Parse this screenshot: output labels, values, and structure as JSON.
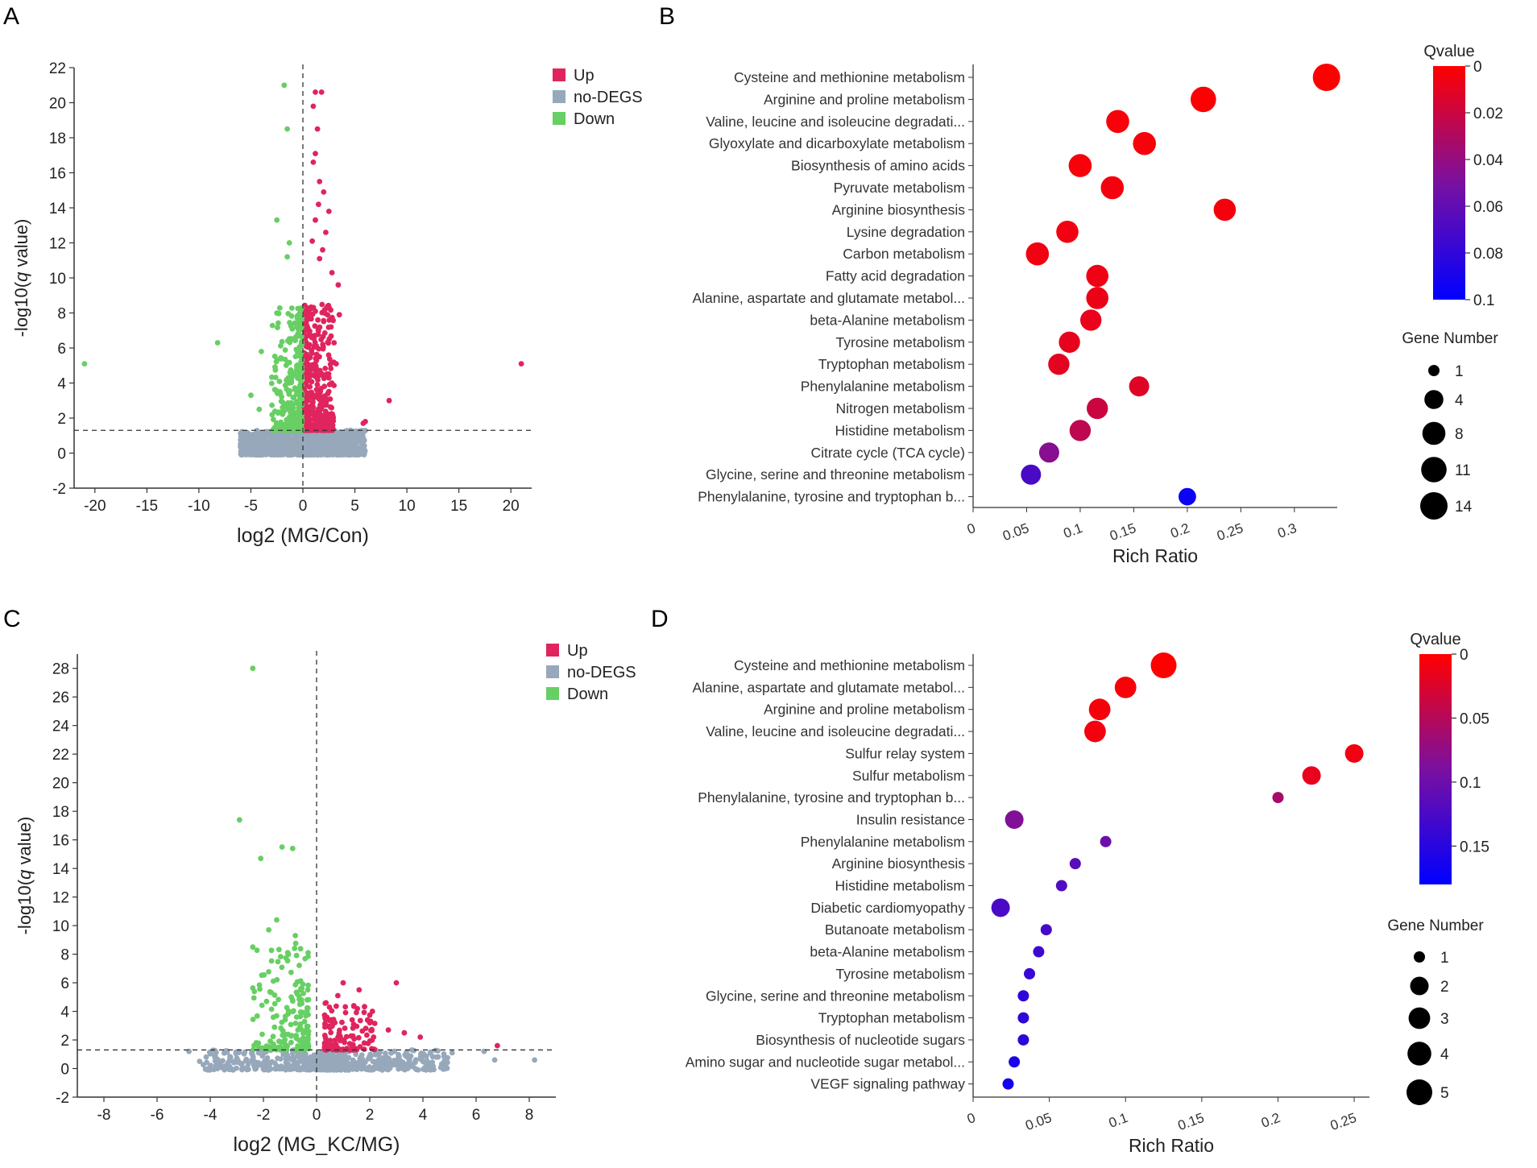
{
  "figure": {
    "panel_letters": [
      "A",
      "B",
      "C",
      "D"
    ]
  },
  "colors": {
    "up": "#e0245e",
    "nodegs": "#97a8bb",
    "down": "#67cf63",
    "qvalue_low": "#ff0000",
    "qvalue_mid": "#7a10a0",
    "qvalue_high": "#0000ff",
    "axis": "#333333",
    "threshold": "#333333"
  },
  "chart_data": [
    {
      "panel": "A",
      "type": "scatter",
      "subtype": "volcano",
      "title": "",
      "xlabel": "log2 (MG/Con)",
      "ylabel_prefix": "-log10(",
      "ylabel_italic": "q",
      "ylabel_suffix": " value)",
      "xlim": [
        -22,
        22
      ],
      "ylim": [
        -2,
        22
      ],
      "xticks": [
        -20,
        -15,
        -10,
        -5,
        0,
        5,
        10,
        15,
        20
      ],
      "yticks": [
        -2,
        0,
        2,
        4,
        6,
        8,
        10,
        12,
        14,
        16,
        18,
        20,
        22
      ],
      "threshold_y": 1.3,
      "threshold_x": 0,
      "legend": {
        "position": "top-right",
        "entries": [
          "Up",
          "no-DEGS",
          "Down"
        ]
      },
      "up_points": [
        [
          21,
          5.1
        ],
        [
          8.3,
          3
        ],
        [
          6,
          1.8
        ],
        [
          5.8,
          1.7
        ],
        [
          1.2,
          20.6
        ],
        [
          1.8,
          20.6
        ],
        [
          1,
          19.8
        ],
        [
          1.4,
          18.5
        ],
        [
          1.2,
          17.1
        ],
        [
          1,
          16.6
        ],
        [
          2,
          14.9
        ],
        [
          1.5,
          14.2
        ],
        [
          2.5,
          13.8
        ],
        [
          1.2,
          13.3
        ],
        [
          1.9,
          11.6
        ],
        [
          2.8,
          10.3
        ],
        [
          3.4,
          9.6
        ],
        [
          2.4,
          8.4
        ],
        [
          3.5,
          7.9
        ],
        [
          2.7,
          7.2
        ],
        [
          3,
          6.3
        ],
        [
          3.2,
          5.1
        ],
        [
          1.6,
          11.1
        ],
        [
          0.9,
          12.1
        ],
        [
          2.2,
          12.6
        ],
        [
          1.6,
          15.5
        ]
      ],
      "up_cluster": {
        "x_from": 0.1,
        "x_to": 3,
        "y_from": 1.3,
        "y_to": 8.5,
        "count": 420
      },
      "down_points": [
        [
          -21,
          5.1
        ],
        [
          -8.2,
          6.3
        ],
        [
          -4,
          5.8
        ],
        [
          -1.8,
          21
        ],
        [
          -1.5,
          18.5
        ],
        [
          -2.5,
          13.3
        ],
        [
          -1.3,
          12
        ],
        [
          -1.5,
          11.2
        ],
        [
          -5,
          3.3
        ],
        [
          -4.2,
          2.5
        ]
      ],
      "down_cluster": {
        "x_from": -3,
        "x_to": -0.1,
        "y_from": 1.3,
        "y_to": 8.3,
        "count": 300
      },
      "nodegs_cluster": {
        "x_from": -6,
        "x_to": 6,
        "y_from": -0.1,
        "y_to": 1.3,
        "count": 1400
      }
    },
    {
      "panel": "B",
      "type": "scatter",
      "subtype": "enrichment-bubble",
      "xlabel": "Rich Ratio",
      "xlim": [
        0,
        0.34
      ],
      "xticks": [
        0,
        0.05,
        0.1,
        0.15,
        0.2,
        0.25,
        0.3
      ],
      "xtick_labels": [
        "0",
        "0.05",
        "0.1",
        "0.15",
        "0.2",
        "0.25",
        "0.3"
      ],
      "colorbar": {
        "title": "Qvalue",
        "min": 0,
        "max": 0.1,
        "ticks": [
          0,
          0.02,
          0.04,
          0.06,
          0.08,
          0.1
        ],
        "tick_labels": [
          "0",
          "0.02",
          "0.04",
          "0.06",
          "0.08",
          "0.1"
        ]
      },
      "size_legend": {
        "title": "Gene Number",
        "values": [
          1,
          4,
          8,
          11,
          14
        ],
        "labels": [
          "1",
          "4",
          "8",
          "11",
          "14"
        ]
      },
      "pathways": [
        {
          "name": "Cysteine and methionine metabolism",
          "rich_ratio": 0.33,
          "qvalue": 0.0,
          "gene_number": 14
        },
        {
          "name": "Arginine and proline metabolism",
          "rich_ratio": 0.215,
          "qvalue": 0.001,
          "gene_number": 11
        },
        {
          "name": "Valine, leucine and isoleucine degradati...",
          "rich_ratio": 0.135,
          "qvalue": 0.003,
          "gene_number": 8
        },
        {
          "name": "Glyoxylate and dicarboxylate metabolism",
          "rich_ratio": 0.16,
          "qvalue": 0.003,
          "gene_number": 8
        },
        {
          "name": "Biosynthesis of amino acids",
          "rich_ratio": 0.1,
          "qvalue": 0.003,
          "gene_number": 8
        },
        {
          "name": "Pyruvate metabolism",
          "rich_ratio": 0.13,
          "qvalue": 0.004,
          "gene_number": 8
        },
        {
          "name": "Arginine biosynthesis",
          "rich_ratio": 0.235,
          "qvalue": 0.004,
          "gene_number": 7
        },
        {
          "name": "Lysine degradation",
          "rich_ratio": 0.088,
          "qvalue": 0.005,
          "gene_number": 7
        },
        {
          "name": "Carbon metabolism",
          "rich_ratio": 0.06,
          "qvalue": 0.005,
          "gene_number": 8
        },
        {
          "name": "Fatty acid degradation",
          "rich_ratio": 0.116,
          "qvalue": 0.006,
          "gene_number": 7
        },
        {
          "name": "Alanine, aspartate and glutamate metabol...",
          "rich_ratio": 0.116,
          "qvalue": 0.007,
          "gene_number": 7
        },
        {
          "name": "beta-Alanine metabolism",
          "rich_ratio": 0.11,
          "qvalue": 0.008,
          "gene_number": 6
        },
        {
          "name": "Tyrosine metabolism",
          "rich_ratio": 0.09,
          "qvalue": 0.009,
          "gene_number": 6
        },
        {
          "name": "Tryptophan metabolism",
          "rich_ratio": 0.08,
          "qvalue": 0.01,
          "gene_number": 6
        },
        {
          "name": "Phenylalanine metabolism",
          "rich_ratio": 0.155,
          "qvalue": 0.012,
          "gene_number": 5
        },
        {
          "name": "Nitrogen metabolism",
          "rich_ratio": 0.116,
          "qvalue": 0.02,
          "gene_number": 6
        },
        {
          "name": "Histidine metabolism",
          "rich_ratio": 0.1,
          "qvalue": 0.025,
          "gene_number": 6
        },
        {
          "name": "Citrate cycle (TCA cycle)",
          "rich_ratio": 0.071,
          "qvalue": 0.045,
          "gene_number": 5
        },
        {
          "name": "Glycine, serine and threonine metabolism",
          "rich_ratio": 0.054,
          "qvalue": 0.07,
          "gene_number": 5
        },
        {
          "name": "Phenylalanine, tyrosine and tryptophan b...",
          "rich_ratio": 0.2,
          "qvalue": 0.095,
          "gene_number": 3
        }
      ]
    },
    {
      "panel": "C",
      "type": "scatter",
      "subtype": "volcano",
      "title": "",
      "xlabel": "log2 (MG_KC/MG)",
      "ylabel_prefix": "-log10(",
      "ylabel_italic": "q",
      "ylabel_suffix": " value)",
      "xlim": [
        -9,
        9
      ],
      "ylim": [
        -2,
        29
      ],
      "xticks": [
        -8,
        -6,
        -4,
        -2,
        0,
        2,
        4,
        6,
        8
      ],
      "yticks": [
        -2,
        0,
        2,
        4,
        6,
        8,
        10,
        12,
        14,
        16,
        18,
        20,
        22,
        24,
        26,
        28
      ],
      "threshold_y": 1.3,
      "threshold_x": 0,
      "legend": {
        "position": "top-right",
        "entries": [
          "Up",
          "no-DEGS",
          "Down"
        ]
      },
      "up_points": [
        [
          1,
          6
        ],
        [
          1.6,
          5.5
        ],
        [
          3,
          6
        ],
        [
          2.1,
          4
        ],
        [
          2,
          3.2
        ],
        [
          2.7,
          2.7
        ],
        [
          3.3,
          2.5
        ],
        [
          3.9,
          2.2
        ],
        [
          6.8,
          1.6
        ],
        [
          1.4,
          4.4
        ],
        [
          0.8,
          5.1
        ]
      ],
      "up_cluster": {
        "x_from": 0.3,
        "x_to": 2.4,
        "y_from": 1.3,
        "y_to": 4.6,
        "count": 120
      },
      "down_points": [
        [
          -2.4,
          28
        ],
        [
          -2.9,
          17.4
        ],
        [
          -2.1,
          14.7
        ],
        [
          -1.3,
          15.5
        ],
        [
          -0.9,
          15.4
        ],
        [
          -1.5,
          10.4
        ],
        [
          -2.4,
          8.5
        ],
        [
          -1.8,
          9.7
        ],
        [
          -0.8,
          9.3
        ]
      ],
      "down_cluster": {
        "x_from": -2.4,
        "x_to": -0.3,
        "y_from": 1.3,
        "y_to": 8.9,
        "count": 180
      },
      "nodegs_cluster": {
        "x_from": -4.3,
        "x_to": 5,
        "y_from": -0.1,
        "y_to": 1.3,
        "count": 650
      },
      "nodegs_points": [
        [
          -4.8,
          1.2
        ],
        [
          -4.4,
          0.5
        ],
        [
          6.3,
          1.2
        ],
        [
          6.7,
          0.6
        ],
        [
          8.2,
          0.6
        ],
        [
          5.1,
          1.1
        ]
      ]
    },
    {
      "panel": "D",
      "type": "scatter",
      "subtype": "enrichment-bubble",
      "xlabel": "Rich Ratio",
      "xlim": [
        0,
        0.26
      ],
      "xticks": [
        0,
        0.05,
        0.1,
        0.15,
        0.2,
        0.25
      ],
      "xtick_labels": [
        "0",
        "0.05",
        "0.1",
        "0.15",
        "0.2",
        "0.25"
      ],
      "colorbar": {
        "title": "Qvalue",
        "min": 0,
        "max": 0.18,
        "ticks": [
          0,
          0.05,
          0.1,
          0.15
        ],
        "tick_labels": [
          "0",
          "0.05",
          "0.1",
          "0.15"
        ]
      },
      "size_legend": {
        "title": "Gene Number",
        "values": [
          1,
          2,
          3,
          4,
          5
        ],
        "labels": [
          "1",
          "2",
          "3",
          "4",
          "5"
        ]
      },
      "pathways": [
        {
          "name": "Cysteine and methionine metabolism",
          "rich_ratio": 0.125,
          "qvalue": 0.0,
          "gene_number": 5
        },
        {
          "name": "Alanine, aspartate and glutamate metabol...",
          "rich_ratio": 0.1,
          "qvalue": 0.005,
          "gene_number": 3
        },
        {
          "name": "Arginine and proline metabolism",
          "rich_ratio": 0.083,
          "qvalue": 0.007,
          "gene_number": 3
        },
        {
          "name": "Valine, leucine and isoleucine degradati...",
          "rich_ratio": 0.08,
          "qvalue": 0.008,
          "gene_number": 3
        },
        {
          "name": "Sulfur relay system",
          "rich_ratio": 0.25,
          "qvalue": 0.01,
          "gene_number": 2
        },
        {
          "name": "Sulfur metabolism",
          "rich_ratio": 0.222,
          "qvalue": 0.015,
          "gene_number": 2
        },
        {
          "name": "Phenylalanine, tyrosine and tryptophan b...",
          "rich_ratio": 0.2,
          "qvalue": 0.06,
          "gene_number": 1
        },
        {
          "name": "Insulin resistance",
          "rich_ratio": 0.027,
          "qvalue": 0.085,
          "gene_number": 2
        },
        {
          "name": "Phenylalanine metabolism",
          "rich_ratio": 0.087,
          "qvalue": 0.1,
          "gene_number": 1
        },
        {
          "name": "Arginine biosynthesis",
          "rich_ratio": 0.067,
          "qvalue": 0.115,
          "gene_number": 1
        },
        {
          "name": "Histidine metabolism",
          "rich_ratio": 0.058,
          "qvalue": 0.12,
          "gene_number": 1
        },
        {
          "name": "Diabetic cardiomyopathy",
          "rich_ratio": 0.018,
          "qvalue": 0.125,
          "gene_number": 2
        },
        {
          "name": "Butanoate metabolism",
          "rich_ratio": 0.048,
          "qvalue": 0.13,
          "gene_number": 1
        },
        {
          "name": "beta-Alanine metabolism",
          "rich_ratio": 0.043,
          "qvalue": 0.135,
          "gene_number": 1
        },
        {
          "name": "Tyrosine metabolism",
          "rich_ratio": 0.037,
          "qvalue": 0.14,
          "gene_number": 1
        },
        {
          "name": "Glycine, serine and threonine metabolism",
          "rich_ratio": 0.033,
          "qvalue": 0.145,
          "gene_number": 1
        },
        {
          "name": "Tryptophan metabolism",
          "rich_ratio": 0.033,
          "qvalue": 0.145,
          "gene_number": 1
        },
        {
          "name": "Biosynthesis of nucleotide sugars",
          "rich_ratio": 0.033,
          "qvalue": 0.145,
          "gene_number": 1
        },
        {
          "name": "Amino sugar and nucleotide sugar metabol...",
          "rich_ratio": 0.027,
          "qvalue": 0.16,
          "gene_number": 1
        },
        {
          "name": "VEGF signaling pathway",
          "rich_ratio": 0.023,
          "qvalue": 0.165,
          "gene_number": 1
        }
      ]
    }
  ]
}
